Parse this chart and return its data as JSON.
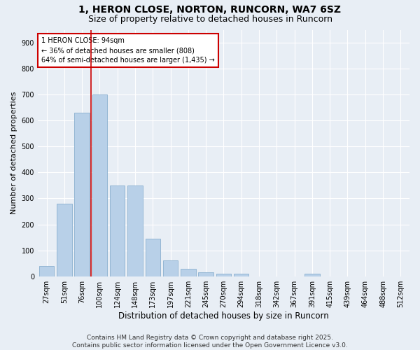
{
  "title": "1, HERON CLOSE, NORTON, RUNCORN, WA7 6SZ",
  "subtitle": "Size of property relative to detached houses in Runcorn",
  "xlabel": "Distribution of detached houses by size in Runcorn",
  "ylabel": "Number of detached properties",
  "bar_color": "#b8d0e8",
  "bar_edge_color": "#8ab0d0",
  "background_color": "#e8eef5",
  "grid_color": "#ffffff",
  "categories": [
    "27sqm",
    "51sqm",
    "76sqm",
    "100sqm",
    "124sqm",
    "148sqm",
    "173sqm",
    "197sqm",
    "221sqm",
    "245sqm",
    "270sqm",
    "294sqm",
    "318sqm",
    "342sqm",
    "367sqm",
    "391sqm",
    "415sqm",
    "439sqm",
    "464sqm",
    "488sqm",
    "512sqm"
  ],
  "values": [
    40,
    280,
    630,
    700,
    350,
    350,
    145,
    60,
    30,
    15,
    10,
    10,
    0,
    0,
    0,
    10,
    0,
    0,
    0,
    0,
    0
  ],
  "vline_color": "#cc0000",
  "annotation_text": "1 HERON CLOSE: 94sqm\n← 36% of detached houses are smaller (808)\n64% of semi-detached houses are larger (1,435) →",
  "annotation_box_color": "#ffffff",
  "annotation_box_edge": "#cc0000",
  "ylim": [
    0,
    950
  ],
  "yticks": [
    0,
    100,
    200,
    300,
    400,
    500,
    600,
    700,
    800,
    900
  ],
  "footer": "Contains HM Land Registry data © Crown copyright and database right 2025.\nContains public sector information licensed under the Open Government Licence v3.0.",
  "title_fontsize": 10,
  "subtitle_fontsize": 9,
  "xlabel_fontsize": 8.5,
  "ylabel_fontsize": 8,
  "tick_fontsize": 7,
  "footer_fontsize": 6.5
}
